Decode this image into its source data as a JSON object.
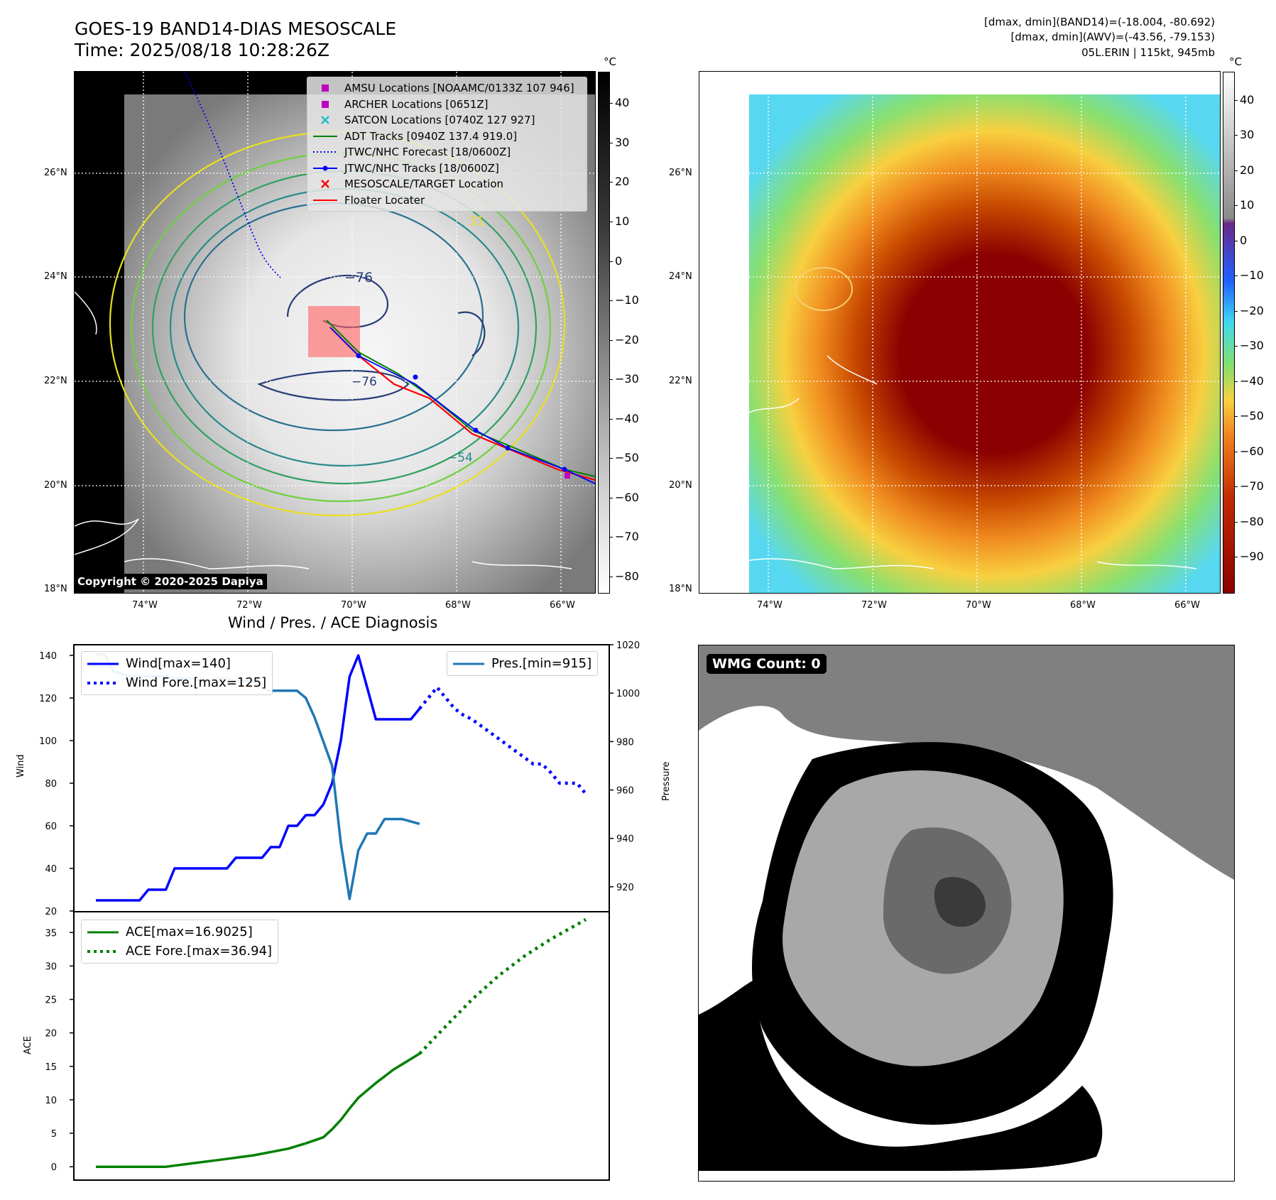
{
  "header": {
    "title": "GOES-19 BAND14-DIAS MESOSCALE",
    "time": "Time: 2025/08/18 10:28:26Z",
    "dmax_band14": "[dmax, dmin](BAND14)=(-18.004, -80.692)",
    "dmax_awv": "[dmax, dmin](AWV)=(-43.56, -79.153)",
    "storm": "05L.ERIN | 115kt, 945mb"
  },
  "map_axes": {
    "lat_ticks": [
      "26°N",
      "24°N",
      "22°N",
      "20°N",
      "18°N"
    ],
    "lon_ticks": [
      "74°W",
      "72°W",
      "70°W",
      "68°W",
      "66°W"
    ],
    "unit": "°C",
    "copyright": "Copyright © 2020-2025 Dapiya"
  },
  "colorbar_gray": {
    "ticks": [
      "40",
      "30",
      "20",
      "10",
      "0",
      "−10",
      "−20",
      "−30",
      "−40",
      "−50",
      "−60",
      "−70",
      "−80"
    ],
    "range": [
      48,
      -84
    ]
  },
  "colorbar_color": {
    "ticks": [
      "40",
      "30",
      "20",
      "10",
      "0",
      "−10",
      "−20",
      "−30",
      "−40",
      "−50",
      "−60",
      "−70",
      "−80",
      "−90"
    ],
    "range": [
      48,
      -100
    ]
  },
  "contour_labels": [
    "−76",
    "−76",
    "−54",
    "31"
  ],
  "map_legend": [
    {
      "label": "AMSU Locations [NOAAMC/0133Z 107 946]",
      "symbol": "square",
      "color": "#c000c0"
    },
    {
      "label": "ARCHER Locations [0651Z]",
      "symbol": "square",
      "color": "#c000c0"
    },
    {
      "label": "SATCON Locations [0740Z 127 927]",
      "symbol": "x",
      "color": "#20c0c0"
    },
    {
      "label": "ADT Tracks [0940Z 137.4 919.0]",
      "symbol": "line",
      "color": "#008000"
    },
    {
      "label": "JTWC/NHC Forecast [18/0600Z]",
      "symbol": "dotted",
      "color": "#0000ff"
    },
    {
      "label": "JTWC/NHC Tracks [18/0600Z]",
      "symbol": "line-dot",
      "color": "#0000ff"
    },
    {
      "label": "MESOSCALE/TARGET Location",
      "symbol": "x",
      "color": "#ff0000"
    },
    {
      "label": "Floater Locater",
      "symbol": "line",
      "color": "#ff0000"
    }
  ],
  "diagnosis": {
    "title": "Wind / Pres. / ACE Diagnosis",
    "wind_ylabel": "Wind",
    "pres_ylabel": "Pressure",
    "ace_ylabel": "ACE",
    "wind_legend": [
      "Wind[max=140]",
      "Wind Fore.[max=125]"
    ],
    "pres_legend": [
      "Pres.[min=915]"
    ],
    "ace_legend": [
      "ACE[max=16.9025]",
      "ACE Fore.[max=36.94]"
    ],
    "wmg_label": "WMG Count: 0"
  },
  "chart_data": [
    {
      "type": "line",
      "xlabel": "",
      "ylabel": "Wind",
      "ylim": [
        20,
        140
      ],
      "yticks": [
        20,
        40,
        60,
        80,
        100,
        120,
        140
      ],
      "series": [
        {
          "name": "Wind[max=140]",
          "color": "#0000ff",
          "style": "solid",
          "x": [
            0,
            1,
            2,
            3,
            4,
            5,
            6,
            7,
            8,
            9,
            10,
            11,
            12,
            13,
            14,
            15,
            16,
            17,
            18,
            19,
            20,
            21,
            22,
            23,
            24,
            25,
            26,
            27,
            28,
            29,
            30,
            31,
            32,
            33,
            34,
            35,
            36,
            37,
            38,
            39,
            40,
            41
          ],
          "values": [
            25,
            25,
            25,
            25,
            25,
            25,
            30,
            30,
            30,
            40,
            40,
            40,
            40,
            40,
            40,
            40,
            45,
            45,
            45,
            45,
            50,
            50,
            60,
            60,
            65,
            65,
            70,
            80,
            100,
            130,
            140,
            125,
            110,
            110,
            110,
            110,
            110,
            115,
            null,
            null,
            null,
            null
          ]
        },
        {
          "name": "Wind Fore.[max=125]",
          "color": "#0000ff",
          "style": "dotted",
          "x": [
            37,
            38,
            39,
            40,
            41,
            42,
            43,
            44,
            45,
            46,
            47,
            48,
            49,
            50,
            51,
            52,
            53,
            54,
            55,
            56
          ],
          "values": [
            115,
            120,
            125,
            120,
            115,
            112,
            110,
            107,
            104,
            101,
            98,
            95,
            92,
            89,
            89,
            85,
            80,
            80,
            80,
            75
          ]
        }
      ]
    },
    {
      "type": "line",
      "ylabel": "Pressure",
      "ylim": [
        910,
        1020
      ],
      "yticks": [
        920,
        940,
        960,
        980,
        1000,
        1020
      ],
      "series": [
        {
          "name": "Pres.[min=915]",
          "color": "#1f77b4",
          "style": "solid",
          "x": [
            0,
            1,
            2,
            3,
            4,
            5,
            6,
            7,
            8,
            9,
            10,
            11,
            12,
            13,
            14,
            15,
            16,
            17,
            18,
            19,
            20,
            21,
            22,
            23,
            24,
            25,
            26,
            27,
            28,
            29,
            30,
            31,
            32,
            33,
            34,
            35,
            36,
            37
          ],
          "values": [
            1016,
            1016,
            1009,
            1008,
            1007,
            1007,
            1007,
            1007,
            1007,
            1006,
            1006,
            1006,
            1005,
            1005,
            1006,
            1006,
            1005,
            1005,
            1005,
            1002,
            1001,
            1001,
            1001,
            1001,
            998,
            990,
            980,
            970,
            938,
            915,
            935,
            942,
            942,
            948,
            948,
            948,
            947,
            946
          ]
        }
      ]
    },
    {
      "type": "line",
      "ylabel": "ACE",
      "ylim": [
        -2,
        38
      ],
      "yticks": [
        0,
        5,
        10,
        15,
        20,
        25,
        30,
        35
      ],
      "series": [
        {
          "name": "ACE[max=16.9025]",
          "color": "#008000",
          "style": "solid",
          "x": [
            0,
            5,
            8,
            11,
            14,
            18,
            22,
            24,
            26,
            27,
            28,
            29,
            30,
            32,
            34,
            37
          ],
          "values": [
            0,
            0,
            0,
            0.5,
            1,
            1.7,
            2.7,
            3.5,
            4.4,
            5.6,
            7,
            8.7,
            10.3,
            12.5,
            14.5,
            16.9
          ]
        },
        {
          "name": "ACE Fore.[max=36.94]",
          "color": "#008000",
          "style": "dotted",
          "x": [
            37,
            40,
            43,
            46,
            49,
            52,
            56
          ],
          "values": [
            16.9,
            21,
            25,
            28.5,
            31.5,
            34,
            36.94
          ]
        }
      ]
    }
  ]
}
